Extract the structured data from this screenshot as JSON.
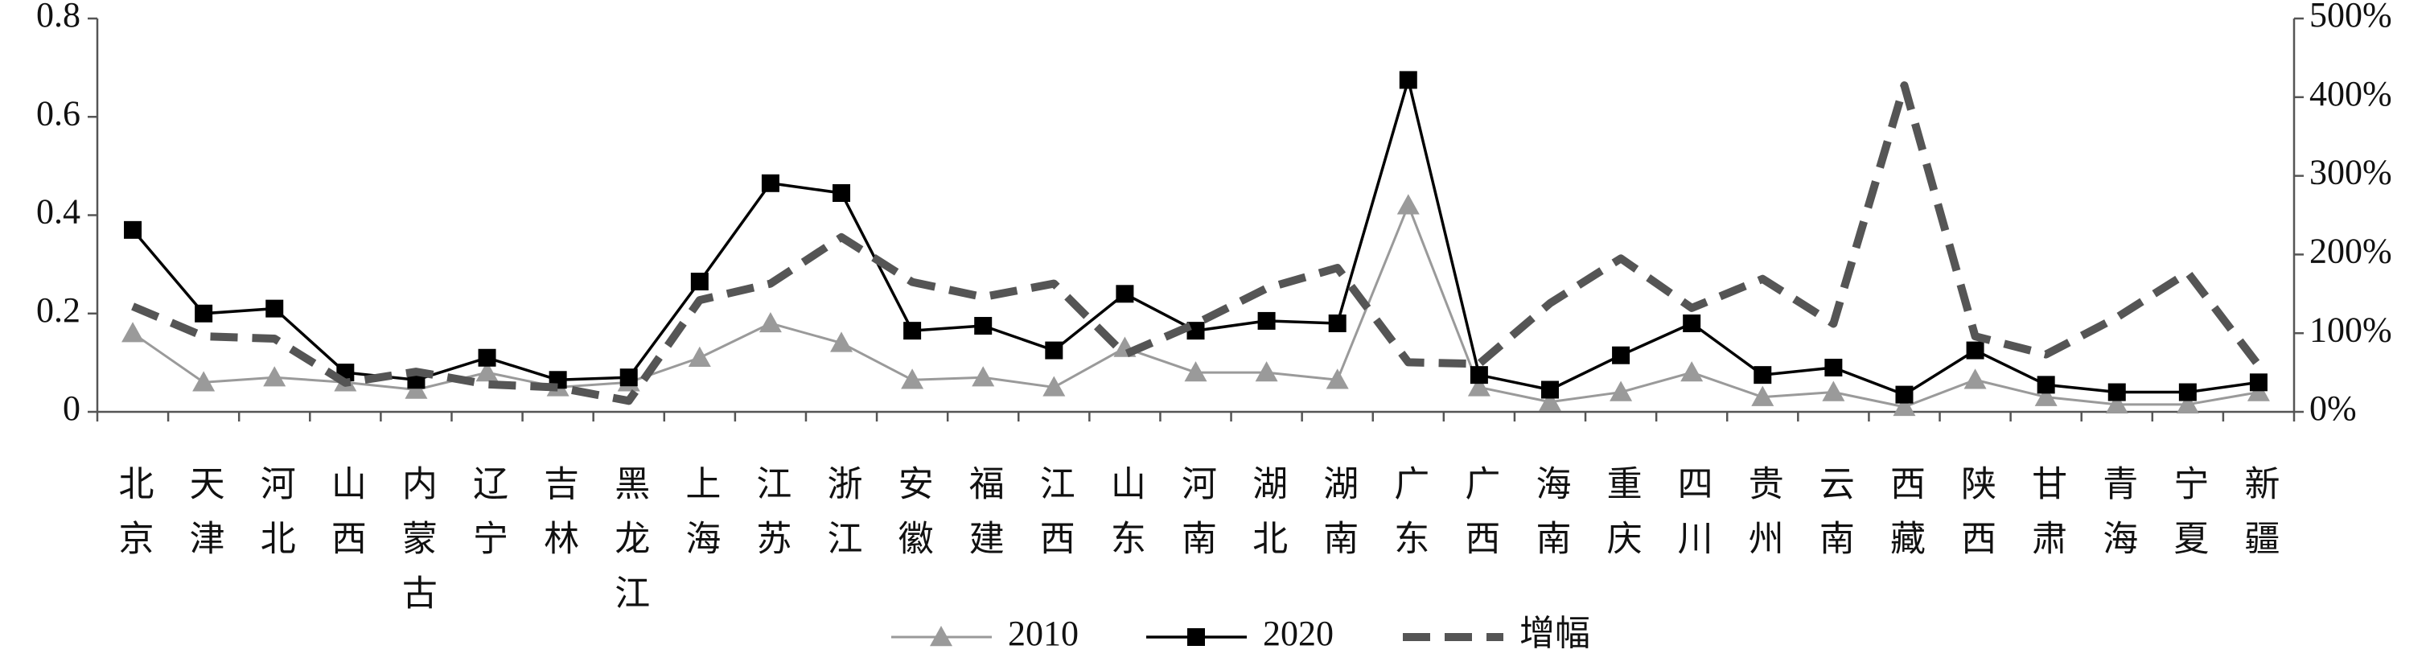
{
  "chart_data": {
    "type": "line",
    "categories": [
      "北京",
      "天津",
      "河北",
      "山西",
      "内蒙古",
      "辽宁",
      "吉林",
      "黑龙江",
      "上海",
      "江苏",
      "浙江",
      "安徽",
      "福建",
      "江西",
      "山东",
      "河南",
      "湖北",
      "湖南",
      "广东",
      "广西",
      "海南",
      "重庆",
      "四川",
      "贵州",
      "云南",
      "西藏",
      "陕西",
      "甘肃",
      "青海",
      "宁夏",
      "新疆"
    ],
    "ylim": [
      0,
      0.8
    ],
    "yticks": [
      0,
      0.2,
      0.4,
      0.6,
      0.8
    ],
    "y2lim": [
      0,
      500
    ],
    "y2ticks": [
      {
        "value": 0,
        "label": "0%"
      },
      {
        "value": 100,
        "label": "100%"
      },
      {
        "value": 200,
        "label": "200%"
      },
      {
        "value": 300,
        "label": "300%"
      },
      {
        "value": 400,
        "label": "400%"
      },
      {
        "value": 500,
        "label": "500%"
      }
    ],
    "grid": false,
    "legend": "bottom",
    "series": [
      {
        "name": "2010",
        "color": "#9a9a9a",
        "marker": "triangle",
        "line_style": "solid",
        "values": [
          0.16,
          0.06,
          0.07,
          0.06,
          0.045,
          0.08,
          0.05,
          0.06,
          0.11,
          0.18,
          0.14,
          0.065,
          0.07,
          0.05,
          0.13,
          0.08,
          0.08,
          0.065,
          0.42,
          0.05,
          0.02,
          0.04,
          0.08,
          0.03,
          0.04,
          0.01,
          0.065,
          0.03,
          0.015,
          0.015,
          0.04
        ]
      },
      {
        "name": "2020",
        "color": "#000000",
        "marker": "square",
        "line_style": "solid",
        "values": [
          0.37,
          0.2,
          0.21,
          0.08,
          0.065,
          0.11,
          0.065,
          0.07,
          0.265,
          0.465,
          0.445,
          0.165,
          0.175,
          0.125,
          0.24,
          0.165,
          0.185,
          0.18,
          0.675,
          0.075,
          0.045,
          0.115,
          0.18,
          0.075,
          0.09,
          0.035,
          0.125,
          0.055,
          0.04,
          0.04,
          0.06
        ]
      },
      {
        "name": "增幅",
        "color": "#555555",
        "marker": "none",
        "line_style": "dashed",
        "axis": "y2",
        "values": [
          134,
          96,
          93,
          37,
          51,
          35,
          31,
          14,
          142,
          163,
          222,
          165,
          146,
          163,
          73,
          112,
          157,
          183,
          63,
          61,
          138,
          195,
          132,
          169,
          112,
          415,
          96,
          73,
          120,
          177,
          59
        ]
      }
    ]
  }
}
